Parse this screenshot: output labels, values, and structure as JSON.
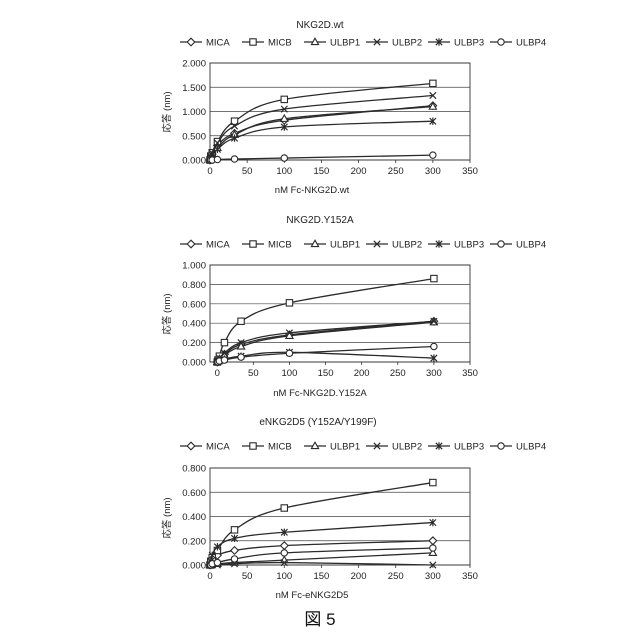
{
  "figure_label": "図 5",
  "colors": {
    "ink": "#2b2b2b",
    "grid": "#444444"
  },
  "chart_data": [
    {
      "type": "line",
      "title": "NKG2D.wt",
      "xlabel": "nM Fc-NKG2D.wt",
      "ylabel": "応答 (nm)",
      "xlim": [
        0,
        350
      ],
      "ylim": [
        0,
        2.0
      ],
      "x_ticks": [
        "0",
        "50",
        "100",
        "150",
        "200",
        "250",
        "300",
        "350"
      ],
      "y_ticks": [
        "0.000",
        "0.500",
        "1.000",
        "1.500",
        "2.000"
      ],
      "grid": true,
      "legend_position": "top",
      "x": [
        0,
        1,
        3,
        10,
        33,
        100,
        300
      ],
      "series": [
        {
          "name": "MICA",
          "marker": "diamond",
          "values": [
            0.0,
            0.05,
            0.12,
            0.3,
            0.55,
            0.82,
            1.12
          ]
        },
        {
          "name": "MICB",
          "marker": "square",
          "values": [
            0.0,
            0.08,
            0.15,
            0.38,
            0.8,
            1.25,
            1.58
          ]
        },
        {
          "name": "ULBP1",
          "marker": "triangle",
          "values": [
            0.0,
            0.04,
            0.1,
            0.25,
            0.52,
            0.85,
            1.1
          ]
        },
        {
          "name": "ULBP2",
          "marker": "x",
          "values": [
            0.0,
            0.06,
            0.14,
            0.35,
            0.7,
            1.05,
            1.33
          ]
        },
        {
          "name": "ULBP3",
          "marker": "star",
          "values": [
            0.0,
            0.04,
            0.1,
            0.22,
            0.45,
            0.68,
            0.8
          ]
        },
        {
          "name": "ULBP4",
          "marker": "circle",
          "values": [
            0.0,
            0.0,
            0.0,
            0.01,
            0.02,
            0.04,
            0.1
          ]
        }
      ]
    },
    {
      "type": "line",
      "title": "NKG2D.Y152A",
      "xlabel": "nM Fc-NKG2D.Y152A",
      "ylabel": "応答 (nm)",
      "xlim": [
        -10,
        350
      ],
      "ylim": [
        0,
        1.0
      ],
      "x_ticks": [
        "0",
        "50",
        "100",
        "150",
        "200",
        "250",
        "300",
        "350"
      ],
      "y_ticks": [
        "0.000",
        "0.200",
        "0.400",
        "0.600",
        "0.800",
        "1.000"
      ],
      "grid": true,
      "legend_position": "top",
      "x": [
        0,
        1,
        3,
        10,
        33,
        100,
        300
      ],
      "series": [
        {
          "name": "MICA",
          "marker": "diamond",
          "values": [
            0.0,
            0.01,
            0.03,
            0.08,
            0.18,
            0.28,
            0.42
          ]
        },
        {
          "name": "MICB",
          "marker": "square",
          "values": [
            0.0,
            0.02,
            0.06,
            0.2,
            0.42,
            0.61,
            0.86
          ]
        },
        {
          "name": "ULBP1",
          "marker": "triangle",
          "values": [
            0.0,
            0.01,
            0.03,
            0.07,
            0.16,
            0.27,
            0.41
          ]
        },
        {
          "name": "ULBP2",
          "marker": "x",
          "values": [
            0.0,
            0.01,
            0.04,
            0.09,
            0.2,
            0.3,
            0.42
          ]
        },
        {
          "name": "ULBP3",
          "marker": "star",
          "values": [
            0.0,
            0.0,
            0.01,
            0.03,
            0.06,
            0.1,
            0.04
          ]
        },
        {
          "name": "ULBP4",
          "marker": "circle",
          "values": [
            0.0,
            0.0,
            0.01,
            0.02,
            0.05,
            0.09,
            0.16
          ]
        }
      ]
    },
    {
      "type": "line",
      "title": "eNKG2D5 (Y152A/Y199F)",
      "xlabel": "nM Fc-eNKG2D5",
      "ylabel": "応答 (nm)",
      "xlim": [
        0,
        350
      ],
      "ylim": [
        0,
        0.8
      ],
      "x_ticks": [
        "0",
        "50",
        "100",
        "150",
        "200",
        "250",
        "300",
        "350"
      ],
      "y_ticks": [
        "0.000",
        "0.200",
        "0.400",
        "0.600",
        "0.800"
      ],
      "grid": true,
      "legend_position": "top",
      "x": [
        0,
        1,
        3,
        10,
        33,
        100,
        300
      ],
      "series": [
        {
          "name": "MICA",
          "marker": "diamond",
          "values": [
            0.0,
            0.02,
            0.04,
            0.08,
            0.12,
            0.16,
            0.2
          ]
        },
        {
          "name": "MICB",
          "marker": "square",
          "values": [
            0.0,
            0.03,
            0.06,
            0.12,
            0.29,
            0.47,
            0.68
          ]
        },
        {
          "name": "ULBP1",
          "marker": "triangle",
          "values": [
            0.0,
            0.0,
            0.01,
            0.01,
            0.02,
            0.04,
            0.1
          ]
        },
        {
          "name": "ULBP2",
          "marker": "x",
          "values": [
            0.0,
            0.0,
            0.0,
            0.0,
            0.01,
            0.02,
            0.0
          ]
        },
        {
          "name": "ULBP3",
          "marker": "star",
          "values": [
            0.0,
            0.03,
            0.08,
            0.15,
            0.22,
            0.27,
            0.35
          ]
        },
        {
          "name": "ULBP4",
          "marker": "circle",
          "values": [
            0.0,
            0.0,
            0.01,
            0.02,
            0.05,
            0.1,
            0.14
          ]
        }
      ]
    }
  ]
}
